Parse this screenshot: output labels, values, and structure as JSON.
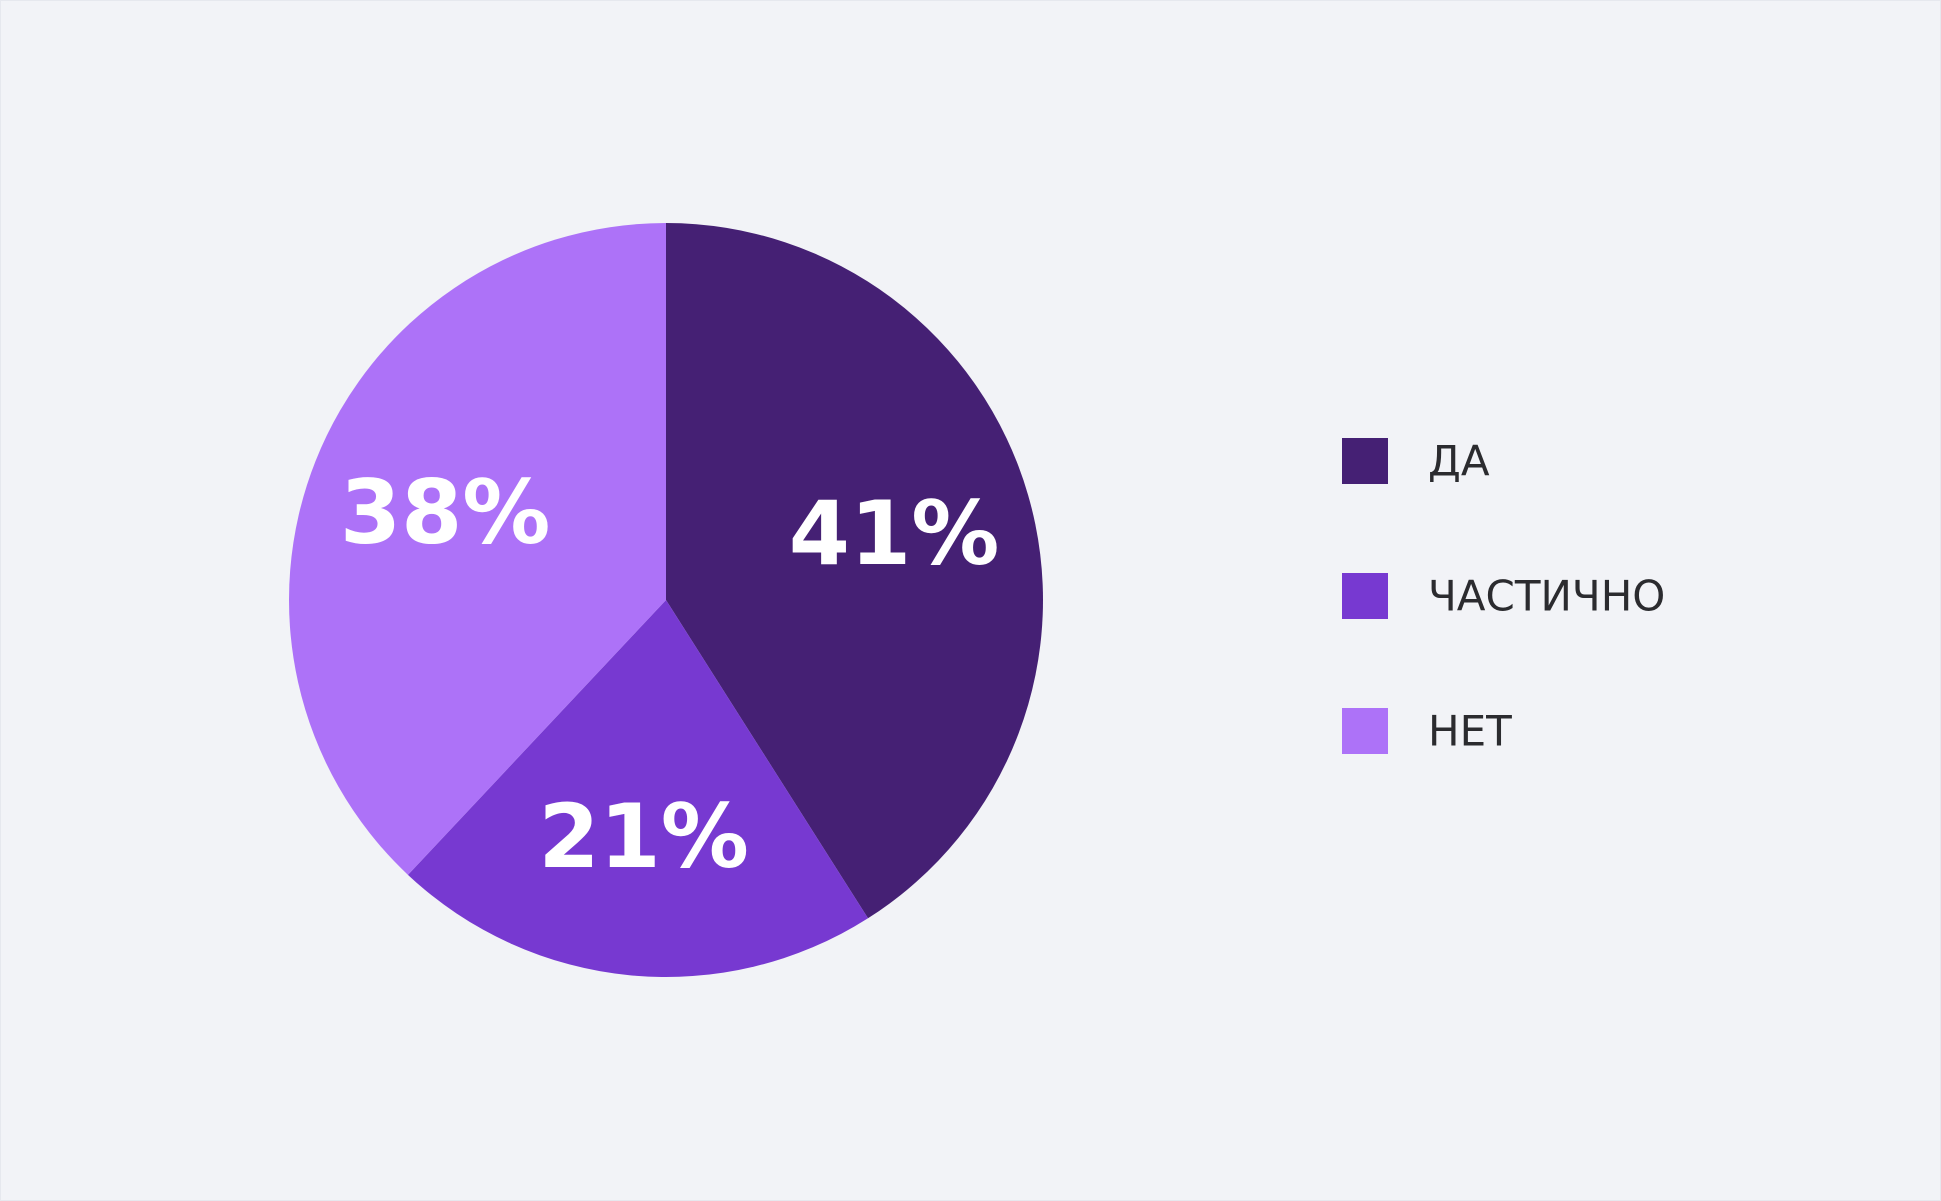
{
  "chart_data": {
    "type": "pie",
    "title": "",
    "categories": [
      "ДА",
      "ЧАСТИЧНО",
      "НЕТ"
    ],
    "values": [
      41,
      21,
      38
    ],
    "value_labels": [
      "41%",
      "21%",
      "38%"
    ],
    "colors": [
      "#452074",
      "#7739d1",
      "#ad72f8"
    ],
    "start_angle_deg": 0,
    "direction": "clockwise",
    "legend": {
      "placement": "right",
      "items": [
        {
          "label": "ДА",
          "color": "#452074"
        },
        {
          "label": "ЧАСТИЧНО",
          "color": "#7739d1"
        },
        {
          "label": "НЕТ",
          "color": "#ad72f8"
        }
      ]
    }
  }
}
